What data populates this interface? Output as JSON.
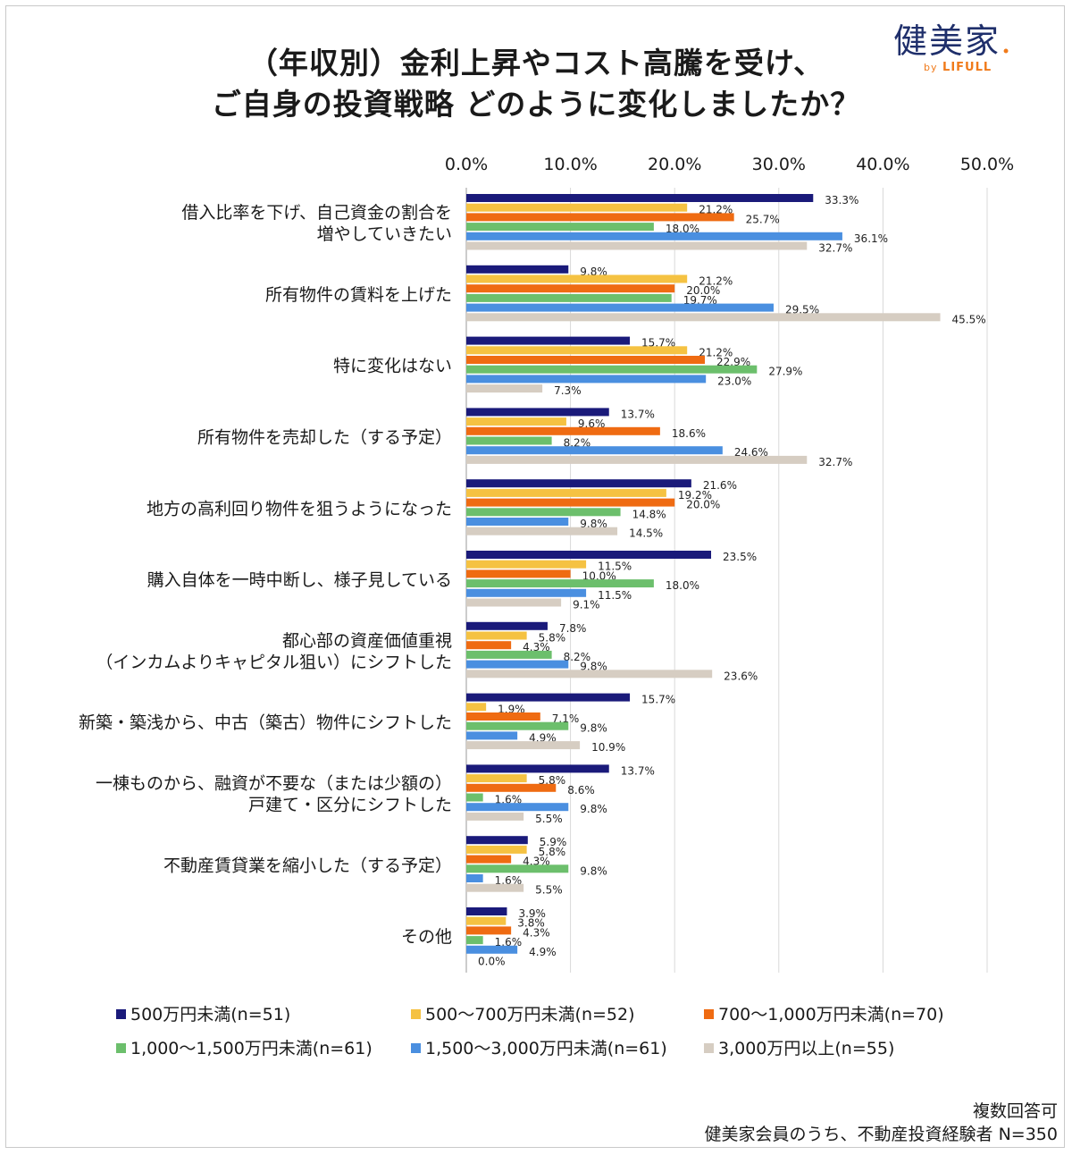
{
  "title_line1": "（年収別）金利上昇やコスト高騰を受け、",
  "title_line2": "ご自身の投資戦略 どのように変化しましたか？",
  "logo": {
    "main": "健美家",
    "by": "by",
    "sub": "LIFULL"
  },
  "note_line1": "複数回答可",
  "note_line2": "健美家会員のうち、不動産投資経験者 N=350",
  "chart_data": {
    "type": "bar",
    "orientation": "horizontal",
    "xlim": [
      0,
      50
    ],
    "xticks": [
      "0.0%",
      "10.0%",
      "20.0%",
      "30.0%",
      "40.0%",
      "50.0%"
    ],
    "grid": true,
    "legend_position": "bottom",
    "categories": [
      [
        "借入比率を下げ、自己資金の割合を",
        "増やしていきたい"
      ],
      [
        "所有物件の賃料を上げた"
      ],
      [
        "特に変化はない"
      ],
      [
        "所有物件を売却した（する予定）"
      ],
      [
        "地方の高利回り物件を狙うようになった"
      ],
      [
        "購入自体を一時中断し、様子見している"
      ],
      [
        "都心部の資産価値重視",
        "（インカムよりキャピタル狙い）にシフトした"
      ],
      [
        "新築・築浅から、中古（築古）物件にシフトした"
      ],
      [
        "一棟ものから、融資が不要な（または少額の）",
        "戸建て・区分にシフトした"
      ],
      [
        "不動産賃貸業を縮小した（する予定）"
      ],
      [
        "その他"
      ]
    ],
    "series": [
      {
        "name": "500万円未満(n=51)",
        "color": "#1a1a7a",
        "values": [
          33.3,
          9.8,
          15.7,
          13.7,
          21.6,
          23.5,
          7.8,
          15.7,
          13.7,
          5.9,
          3.9
        ]
      },
      {
        "name": "500～700万円未満(n=52)",
        "color": "#f5c242",
        "values": [
          21.2,
          21.2,
          21.2,
          9.6,
          19.2,
          11.5,
          5.8,
          1.9,
          5.8,
          5.8,
          3.8
        ]
      },
      {
        "name": "700～1,000万円未満(n=70)",
        "color": "#ef6b12",
        "values": [
          25.7,
          20.0,
          22.9,
          18.6,
          20.0,
          10.0,
          4.3,
          7.1,
          8.6,
          4.3,
          4.3
        ]
      },
      {
        "name": "1,000～1,500万円未満(n=61)",
        "color": "#6cbf6c",
        "values": [
          18.0,
          19.7,
          27.9,
          8.2,
          14.8,
          18.0,
          8.2,
          9.8,
          1.6,
          9.8,
          1.6
        ]
      },
      {
        "name": "1,500～3,000万円未満(n=61)",
        "color": "#4a8fe0",
        "values": [
          36.1,
          29.5,
          23.0,
          24.6,
          9.8,
          11.5,
          9.8,
          4.9,
          9.8,
          1.6,
          4.9
        ]
      },
      {
        "name": "3,000万円以上(n=55)",
        "color": "#d6cdc2",
        "values": [
          32.7,
          45.5,
          7.3,
          32.7,
          14.5,
          9.1,
          23.6,
          10.9,
          5.5,
          5.5,
          0.0
        ]
      }
    ]
  }
}
